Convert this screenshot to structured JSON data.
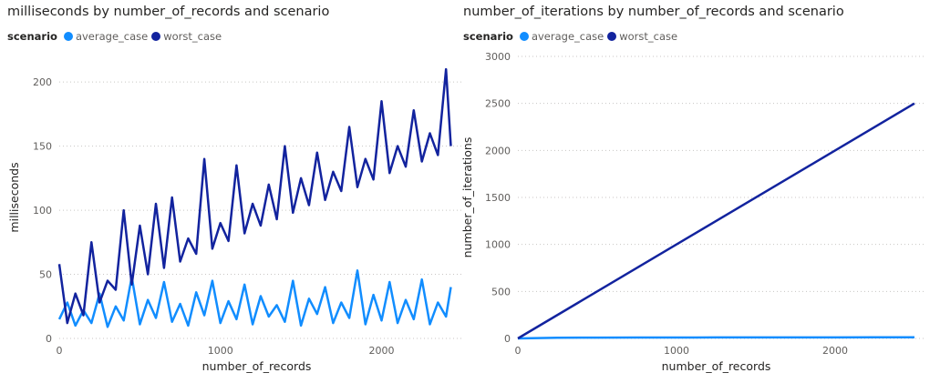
{
  "charts": [
    {
      "title": "milliseconds by number_of_records and scenario",
      "legend_title": "scenario",
      "legend_items": [
        "average_case",
        "worst_case"
      ]
    },
    {
      "title": "number_of_iterations by number_of_records and scenario",
      "legend_title": "scenario",
      "legend_items": [
        "average_case",
        "worst_case"
      ]
    }
  ],
  "colors": {
    "average_case": "#118DFF",
    "worst_case": "#12239E",
    "grid": "#c8c6c4",
    "axis_text": "#605e5c"
  },
  "chart_data": [
    {
      "type": "line",
      "title": "milliseconds by number_of_records and scenario",
      "xlabel": "number_of_records",
      "ylabel": "milliseconds",
      "xlim": [
        0,
        2450
      ],
      "ylim": [
        0,
        220
      ],
      "xticks": [
        0,
        1000,
        2000
      ],
      "yticks": [
        0,
        50,
        100,
        150,
        200
      ],
      "grid": true,
      "legend_position": "top-left",
      "series": [
        {
          "name": "average_case",
          "note": "approximate sampled trace of a noisy series",
          "x": [
            0,
            50,
            100,
            150,
            200,
            250,
            300,
            350,
            400,
            450,
            500,
            550,
            600,
            650,
            700,
            750,
            800,
            850,
            900,
            950,
            1000,
            1050,
            1100,
            1150,
            1200,
            1250,
            1300,
            1350,
            1400,
            1450,
            1500,
            1550,
            1600,
            1650,
            1700,
            1750,
            1800,
            1850,
            1900,
            1950,
            2000,
            2050,
            2100,
            2150,
            2200,
            2250,
            2300,
            2350,
            2400,
            2430
          ],
          "y": [
            15,
            28,
            10,
            22,
            12,
            35,
            9,
            25,
            14,
            48,
            11,
            30,
            16,
            44,
            13,
            27,
            10,
            36,
            18,
            45,
            12,
            29,
            15,
            42,
            11,
            33,
            17,
            26,
            13,
            45,
            10,
            31,
            19,
            40,
            12,
            28,
            16,
            53,
            11,
            34,
            14,
            44,
            12,
            30,
            15,
            46,
            11,
            28,
            17,
            40
          ]
        },
        {
          "name": "worst_case",
          "note": "approximate sampled trace of a noisy series",
          "x": [
            0,
            50,
            100,
            150,
            200,
            250,
            300,
            350,
            400,
            450,
            500,
            550,
            600,
            650,
            700,
            750,
            800,
            850,
            900,
            950,
            1000,
            1050,
            1100,
            1150,
            1200,
            1250,
            1300,
            1350,
            1400,
            1450,
            1500,
            1550,
            1600,
            1650,
            1700,
            1750,
            1800,
            1850,
            1900,
            1950,
            2000,
            2050,
            2100,
            2150,
            2200,
            2250,
            2300,
            2350,
            2400,
            2430
          ],
          "y": [
            58,
            12,
            35,
            18,
            75,
            28,
            45,
            38,
            100,
            42,
            88,
            50,
            105,
            55,
            110,
            60,
            78,
            66,
            140,
            70,
            90,
            76,
            135,
            82,
            105,
            88,
            120,
            93,
            150,
            98,
            125,
            104,
            145,
            108,
            130,
            115,
            165,
            118,
            140,
            124,
            185,
            129,
            150,
            134,
            178,
            138,
            160,
            143,
            210,
            150
          ]
        }
      ]
    },
    {
      "type": "line",
      "title": "number_of_iterations by number_of_records and scenario",
      "xlabel": "number_of_records",
      "ylabel": "number_of_iterations",
      "xlim": [
        0,
        2500
      ],
      "ylim": [
        0,
        3000
      ],
      "xticks": [
        0,
        1000,
        2000
      ],
      "yticks": [
        0,
        500,
        1000,
        1500,
        2000,
        2500,
        3000
      ],
      "grid": true,
      "legend_position": "top-left",
      "series": [
        {
          "name": "average_case",
          "x": [
            0,
            250,
            500,
            750,
            1000,
            1250,
            1500,
            1750,
            2000,
            2250,
            2500
          ],
          "y": [
            0,
            8,
            9,
            10,
            10,
            11,
            11,
            11,
            11,
            12,
            12
          ]
        },
        {
          "name": "worst_case",
          "x": [
            0,
            2500
          ],
          "y": [
            0,
            2500
          ]
        }
      ]
    }
  ]
}
